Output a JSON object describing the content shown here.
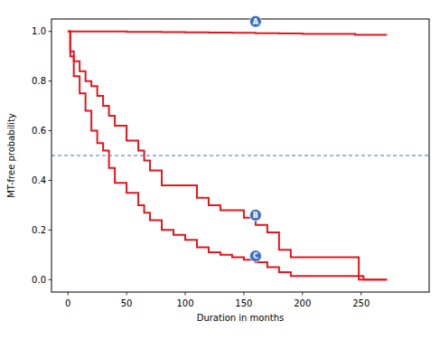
{
  "chart_data": {
    "type": "step",
    "x_label": "Duration in months",
    "y_label": "MT-free probability",
    "x": [
      0,
      2,
      5,
      10,
      15,
      20,
      25,
      30,
      35,
      40,
      50,
      60,
      65,
      70,
      80,
      90,
      100,
      110,
      120,
      130,
      140,
      150,
      160,
      170,
      180,
      190,
      200,
      245,
      248,
      252,
      272
    ],
    "series": [
      {
        "name": "A",
        "color": "#e3161d",
        "line_style": "solid",
        "values": [
          1.0,
          1.0,
          1.0,
          1.0,
          1.0,
          1.0,
          1.0,
          1.0,
          1.0,
          1.0,
          0.998,
          0.998,
          0.998,
          0.998,
          0.997,
          0.997,
          0.996,
          0.996,
          0.995,
          0.995,
          0.994,
          0.994,
          0.993,
          0.993,
          0.992,
          0.992,
          0.99,
          0.986,
          0.986,
          0.986,
          0.986
        ]
      },
      {
        "name": "B",
        "color": "#e3161d",
        "line_style": "solid",
        "values": [
          1.0,
          0.92,
          0.88,
          0.84,
          0.8,
          0.78,
          0.74,
          0.7,
          0.66,
          0.62,
          0.56,
          0.52,
          0.48,
          0.44,
          0.38,
          0.38,
          0.38,
          0.33,
          0.3,
          0.28,
          0.28,
          0.25,
          0.22,
          0.19,
          0.12,
          0.09,
          0.09,
          0.09,
          0.0,
          0.0,
          0.0
        ]
      },
      {
        "name": "C",
        "color": "#e3161d",
        "line_style": "solid",
        "values": [
          1.0,
          0.9,
          0.82,
          0.75,
          0.68,
          0.6,
          0.55,
          0.52,
          0.45,
          0.39,
          0.35,
          0.3,
          0.27,
          0.24,
          0.2,
          0.18,
          0.16,
          0.13,
          0.11,
          0.1,
          0.09,
          0.08,
          0.07,
          0.05,
          0.03,
          0.015,
          0.015,
          0.015,
          0.015,
          0.0,
          0.0
        ]
      }
    ],
    "xlim": [
      -14,
      308
    ],
    "ylim": [
      -0.05,
      1.05
    ],
    "xticks": [
      0,
      50,
      100,
      150,
      200,
      250
    ],
    "yticks": [
      {
        "value": 0,
        "label": "0.0"
      },
      {
        "value": 0.2,
        "label": "0.2"
      },
      {
        "value": 0.4,
        "label": "0.4"
      },
      {
        "value": 0.6,
        "label": "0.6"
      },
      {
        "value": 0.8,
        "label": "0.8"
      },
      {
        "value": 1.0,
        "label": "1.0"
      }
    ],
    "grid": false,
    "hlines": [
      {
        "y": 0.5,
        "color": "#2a5db0",
        "line_style": "dashed"
      }
    ],
    "annotations": [
      {
        "text": "A",
        "x": 160,
        "y": 1.04,
        "color": "#3b6fc6"
      },
      {
        "text": "B",
        "x": 160,
        "y": 0.26,
        "color": "#3b6fc6"
      },
      {
        "text": "C",
        "x": 160,
        "y": 0.095,
        "color": "#3b6fc6"
      }
    ]
  }
}
